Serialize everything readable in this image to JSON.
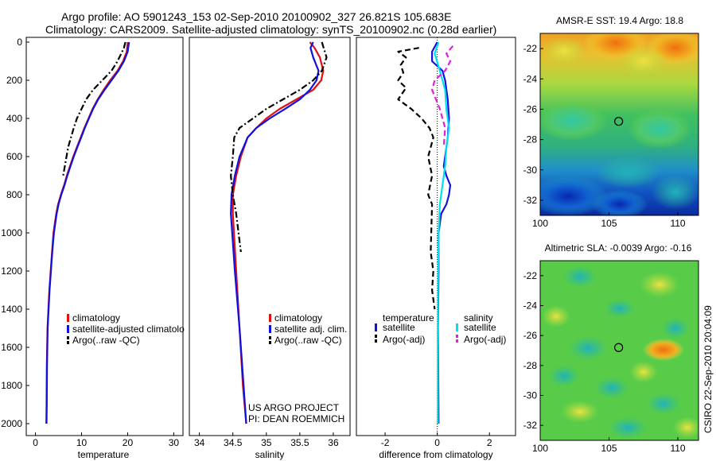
{
  "header": {
    "line1": "Argo profile: AO 5901243_153 02-Sep-2010 20100902_327 26.821S 105.683E",
    "line2": "Climatology: CARS2009. Satellite-adjusted climatology: synTS_20100902.nc (0.28d earlier)"
  },
  "credit": {
    "line1": "US ARGO PROJECT",
    "line2": "PI: DEAN ROEMMICH"
  },
  "stamp": "CSIRO 22-Sep-2010 20:04:09",
  "colors": {
    "red": "#e01010",
    "blue": "#1010e0",
    "black": "#000000",
    "cyan": "#00e0f0",
    "magenta": "#e020e0"
  },
  "chart_data": [
    {
      "type": "line",
      "xlabel": "temperature",
      "ylim": [
        0,
        2050
      ],
      "xlim": [
        -2,
        32
      ],
      "x_ticks": [
        0,
        10,
        20,
        30
      ],
      "y_ticks": [
        0,
        200,
        400,
        600,
        800,
        1000,
        1200,
        1400,
        1600,
        1800,
        2000
      ],
      "y_reversed": true,
      "legend": [
        "climatology",
        "satellite-adjusted climatolo",
        "Argo(..raw -QC)"
      ],
      "series": [
        {
          "color": "red",
          "dash": "solid",
          "x": [
            20,
            19.8,
            19,
            17.8,
            16.2,
            14.8,
            13.5,
            12.4,
            11.5,
            10.6,
            9.8,
            9.0,
            8.2,
            7.5,
            6.8,
            6.2,
            5.5,
            4.9,
            4.5,
            4.2,
            3.9,
            3.6,
            3.3,
            3.0,
            2.8,
            2.6,
            2.45,
            2.4,
            2.35
          ],
          "y": [
            0,
            50,
            100,
            150,
            200,
            250,
            300,
            350,
            400,
            450,
            500,
            550,
            600,
            650,
            700,
            750,
            800,
            850,
            900,
            950,
            1000,
            1100,
            1200,
            1300,
            1400,
            1500,
            1700,
            1900,
            2000
          ]
        },
        {
          "color": "blue",
          "dash": "solid",
          "x": [
            20.3,
            20,
            19.2,
            18,
            16.5,
            15,
            13.6,
            12.5,
            11.6,
            10.7,
            9.9,
            9.1,
            8.3,
            7.6,
            6.9,
            6.3,
            5.6,
            5.0,
            4.6,
            4.3,
            4.0,
            3.65,
            3.35,
            3.05,
            2.85,
            2.65,
            2.5,
            2.45,
            2.4
          ],
          "y": [
            0,
            50,
            100,
            150,
            200,
            250,
            300,
            350,
            400,
            450,
            500,
            550,
            600,
            650,
            700,
            750,
            800,
            850,
            900,
            950,
            1000,
            1100,
            1200,
            1300,
            1400,
            1500,
            1700,
            1900,
            2000
          ]
        },
        {
          "color": "black",
          "dash": "dashdot",
          "x": [
            19.5,
            19.2,
            18.6,
            17.8,
            16.5,
            14.5,
            12.5,
            11.0,
            10.0,
            9.0,
            8.3,
            7.7,
            7.1,
            6.0
          ],
          "y": [
            0,
            30,
            60,
            100,
            150,
            200,
            250,
            300,
            350,
            400,
            450,
            500,
            550,
            700
          ]
        }
      ]
    },
    {
      "type": "line",
      "xlabel": "salinity",
      "ylim": [
        0,
        2050
      ],
      "xlim": [
        33.85,
        36.25
      ],
      "x_ticks": [
        34,
        34.5,
        35,
        35.5,
        36
      ],
      "y_reversed": true,
      "legend": [
        "climatology",
        "satellite adj. clim.",
        "Argo(..raw -QC)"
      ],
      "series": [
        {
          "color": "red",
          "dash": "solid",
          "x": [
            35.65,
            35.72,
            35.8,
            35.85,
            35.82,
            35.7,
            35.45,
            35.2,
            35.0,
            34.85,
            34.72,
            34.62,
            34.55,
            34.5,
            34.5,
            34.55,
            34.6,
            34.65,
            34.7
          ],
          "y": [
            0,
            30,
            80,
            150,
            200,
            250,
            300,
            350,
            400,
            450,
            500,
            600,
            700,
            800,
            900,
            1200,
            1500,
            1800,
            2000
          ]
        },
        {
          "color": "blue",
          "dash": "solid",
          "x": [
            35.7,
            35.66,
            35.7,
            35.78,
            35.75,
            35.65,
            35.5,
            35.28,
            35.05,
            34.85,
            34.72,
            34.6,
            34.53,
            34.48,
            34.47,
            34.53,
            34.6,
            34.66,
            34.7
          ],
          "y": [
            0,
            30,
            80,
            150,
            200,
            250,
            300,
            350,
            400,
            450,
            500,
            600,
            700,
            800,
            900,
            1200,
            1500,
            1800,
            2000
          ]
        },
        {
          "color": "black",
          "dash": "dashdot",
          "x": [
            35.83,
            35.9,
            35.83,
            35.7,
            35.5,
            35.25,
            35.0,
            34.8,
            34.6,
            34.52,
            34.5,
            34.47,
            34.5,
            34.55,
            34.62
          ],
          "y": [
            0,
            80,
            150,
            200,
            250,
            300,
            350,
            400,
            450,
            500,
            600,
            700,
            800,
            900,
            1100
          ]
        }
      ]
    },
    {
      "type": "line",
      "xlabel": "difference from climatology",
      "ylim": [
        0,
        2050
      ],
      "xlim": [
        -3.1,
        3
      ],
      "x_ticks": [
        -2,
        0,
        2
      ],
      "y_reversed": true,
      "legend_groups": [
        {
          "title": "temperature",
          "items": [
            "satellite",
            "Argo(-adj)"
          ]
        },
        {
          "title": "salinity",
          "items": [
            "satellite",
            "Argo(-adj)"
          ]
        }
      ],
      "series": [
        {
          "name": "temperature satellite",
          "color": "blue",
          "dash": "solid",
          "x": [
            0.0,
            -0.2,
            -0.2,
            0.2,
            0.3,
            0.4,
            0.45,
            0.4,
            0.3,
            0.25,
            0.35,
            0.5,
            0.45,
            0.35,
            0.15,
            0.05,
            0.05,
            0.03,
            0.05
          ],
          "y": [
            0,
            50,
            100,
            150,
            200,
            300,
            400,
            500,
            600,
            650,
            700,
            750,
            800,
            850,
            900,
            1000,
            1200,
            1500,
            2000
          ]
        },
        {
          "name": "temperature Argo(-adj)",
          "color": "black",
          "dash": "dashed",
          "x": [
            -0.7,
            -1.5,
            -1.2,
            -1.4,
            -1.3,
            -1.5,
            -1.2,
            -1.5,
            -1.0,
            -0.6,
            -0.3,
            -0.15,
            -0.35,
            -0.2,
            -0.35,
            -0.2,
            -0.25,
            -0.15,
            -0.2,
            -0.1
          ],
          "y": [
            30,
            50,
            80,
            120,
            160,
            200,
            240,
            300,
            350,
            400,
            450,
            500,
            600,
            700,
            800,
            850,
            1100,
            1200,
            1300,
            1400
          ]
        },
        {
          "name": "salinity satellite",
          "color": "cyan",
          "dash": "solid",
          "x": [
            0.05,
            -0.1,
            0.1,
            0.3,
            0.35,
            0.45,
            0.4,
            0.35,
            0.3,
            0.2,
            0.1,
            0.05,
            0.03,
            0.02,
            0.02
          ],
          "y": [
            0,
            60,
            150,
            250,
            350,
            450,
            500,
            550,
            650,
            750,
            850,
            1000,
            1300,
            1600,
            2000
          ]
        },
        {
          "name": "salinity Argo(-adj)",
          "color": "magenta",
          "dash": "dashed",
          "x": [
            0.6,
            0.35,
            0.5,
            0.3,
            -0.1,
            -0.2,
            0.1,
            0.3,
            0.25
          ],
          "y": [
            20,
            60,
            100,
            150,
            200,
            250,
            350,
            450,
            550
          ]
        }
      ]
    },
    {
      "type": "heatmap",
      "title": "AMSR-E SST: 19.4 Argo: 18.8",
      "xlim": [
        100,
        111.5
      ],
      "ylim": [
        -33,
        -21
      ],
      "x_ticks": [
        100,
        105,
        110
      ],
      "y_ticks": [
        -22,
        -24,
        -26,
        -28,
        -30,
        -32
      ],
      "marker": {
        "x": 105.7,
        "y": -26.8
      }
    },
    {
      "type": "heatmap",
      "title": "Altimetric SLA: -0.0039 Argo: -0.16",
      "xlim": [
        100,
        111.5
      ],
      "ylim": [
        -33,
        -21
      ],
      "x_ticks": [
        100,
        105,
        110
      ],
      "y_ticks": [
        -22,
        -24,
        -26,
        -28,
        -30,
        -32
      ],
      "marker": {
        "x": 105.7,
        "y": -26.8
      }
    }
  ]
}
